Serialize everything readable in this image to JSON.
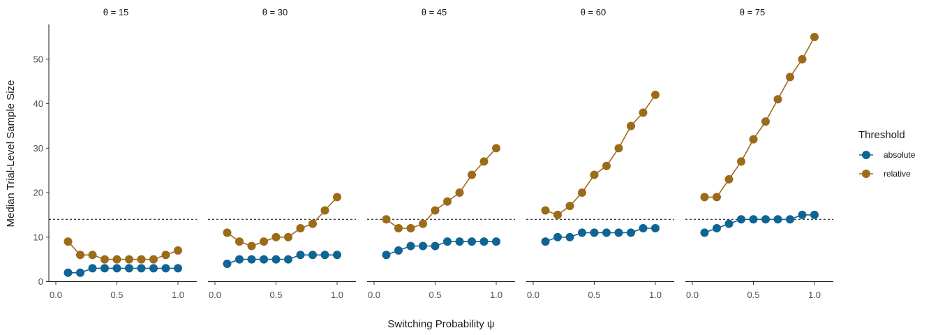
{
  "chart_data": {
    "type": "line",
    "xlabel": "Switching Probability ψ",
    "ylabel": "Median Trial-Level Sample Size",
    "xlim": [
      0.0,
      1.0
    ],
    "ylim": [
      0,
      55
    ],
    "x_ticks": [
      "0.0",
      "0.5",
      "1.0"
    ],
    "y_ticks": [
      "0",
      "10",
      "20",
      "30",
      "40",
      "50"
    ],
    "reference_line": {
      "y": 14,
      "style": "dashed"
    },
    "legend": {
      "title": "Threshold",
      "position": "right"
    },
    "x": [
      0.1,
      0.2,
      0.3,
      0.4,
      0.5,
      0.6,
      0.7,
      0.8,
      0.9,
      1.0
    ],
    "panels": [
      {
        "label": "θ = 15",
        "series": [
          {
            "name": "absolute",
            "values": [
              2,
              2,
              3,
              3,
              3,
              3,
              3,
              3,
              3,
              3
            ]
          },
          {
            "name": "relative",
            "values": [
              9,
              6,
              6,
              5,
              5,
              5,
              5,
              5,
              6,
              7
            ]
          }
        ]
      },
      {
        "label": "θ = 30",
        "series": [
          {
            "name": "absolute",
            "values": [
              4,
              5,
              5,
              5,
              5,
              5,
              6,
              6,
              6,
              6
            ]
          },
          {
            "name": "relative",
            "values": [
              11,
              9,
              8,
              9,
              10,
              10,
              12,
              13,
              16,
              19
            ]
          }
        ]
      },
      {
        "label": "θ = 45",
        "series": [
          {
            "name": "absolute",
            "values": [
              6,
              7,
              8,
              8,
              8,
              9,
              9,
              9,
              9,
              9
            ]
          },
          {
            "name": "relative",
            "values": [
              14,
              12,
              12,
              13,
              16,
              18,
              20,
              24,
              27,
              30
            ]
          }
        ]
      },
      {
        "label": "θ = 60",
        "series": [
          {
            "name": "absolute",
            "values": [
              9,
              10,
              10,
              11,
              11,
              11,
              11,
              11,
              12,
              12
            ]
          },
          {
            "name": "relative",
            "values": [
              16,
              15,
              17,
              20,
              24,
              26,
              30,
              35,
              38,
              42
            ]
          }
        ]
      },
      {
        "label": "θ = 75",
        "series": [
          {
            "name": "absolute",
            "values": [
              11,
              12,
              13,
              14,
              14,
              14,
              14,
              14,
              15,
              15
            ]
          },
          {
            "name": "relative",
            "values": [
              19,
              19,
              23,
              27,
              32,
              36,
              41,
              46,
              50,
              55
            ]
          }
        ]
      }
    ],
    "series_colors": {
      "absolute": "#0f6494",
      "relative": "#9c6b1a"
    }
  }
}
